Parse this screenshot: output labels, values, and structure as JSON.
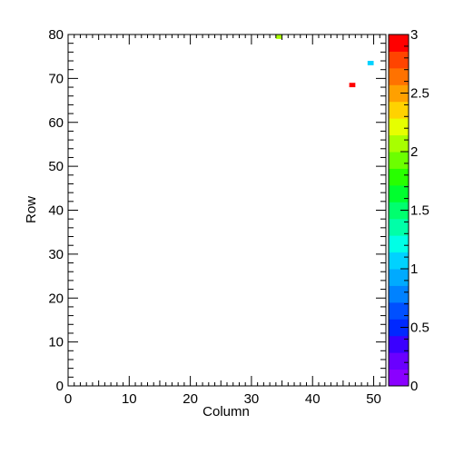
{
  "chart_data": {
    "type": "heatmap",
    "xlabel": "Column",
    "ylabel": "Row",
    "xlim": [
      0,
      52
    ],
    "ylim": [
      0,
      80
    ],
    "x_ticks": [
      0,
      10,
      20,
      30,
      40,
      50
    ],
    "x_tick_labels": [
      "0",
      "10",
      "20",
      "30",
      "40",
      "50"
    ],
    "y_ticks": [
      0,
      10,
      20,
      30,
      40,
      50,
      60,
      70,
      80
    ],
    "y_tick_labels": [
      "0",
      "10",
      "20",
      "30",
      "40",
      "50",
      "60",
      "70",
      "80"
    ],
    "bin_width": 1,
    "bin_height": 1,
    "cells": [
      {
        "column": 34,
        "row": 79,
        "value": 2
      },
      {
        "column": 49,
        "row": 73,
        "value": 1
      },
      {
        "column": 46,
        "row": 68,
        "value": 3
      }
    ],
    "colorbar": {
      "min": 0,
      "max": 3,
      "ticks": [
        0,
        0.5,
        1,
        1.5,
        2,
        2.5,
        3
      ],
      "tick_labels": [
        "0",
        "0.5",
        "1",
        "1.5",
        "2",
        "2.5",
        "3"
      ],
      "colors": [
        "#8a00ff",
        "#6a00ff",
        "#3a00ff",
        "#0028ff",
        "#0050ff",
        "#0082ff",
        "#00aaff",
        "#00d2ff",
        "#00ffe6",
        "#00ffa8",
        "#00ff6e",
        "#00ff2e",
        "#28ff00",
        "#6cff00",
        "#a8ff00",
        "#e6ff00",
        "#ffd200",
        "#ffa000",
        "#ff7200",
        "#ff4400",
        "#ff0000"
      ]
    }
  }
}
